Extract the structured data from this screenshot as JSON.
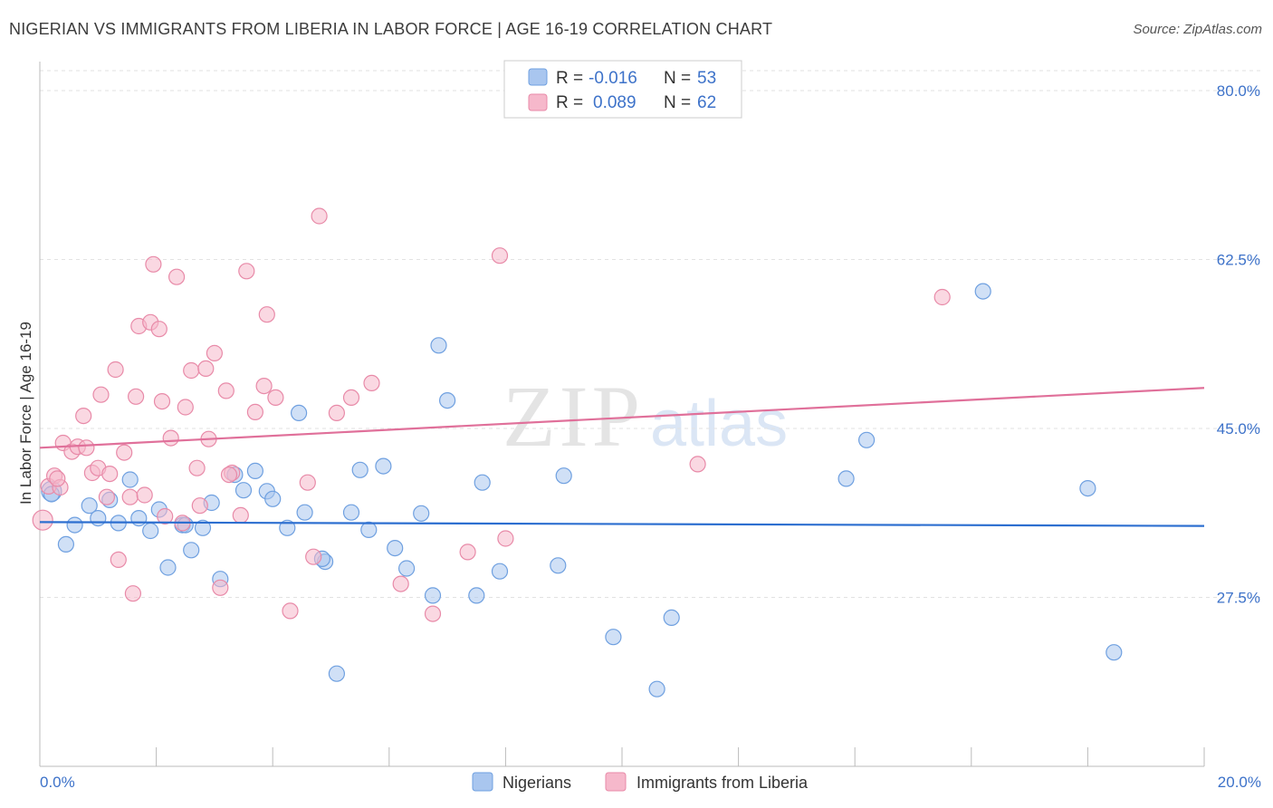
{
  "header": {
    "title": "NIGERIAN VS IMMIGRANTS FROM LIBERIA IN LABOR FORCE | AGE 16-19 CORRELATION CHART",
    "source": "Source: ZipAtlas.com"
  },
  "watermark": {
    "zip": "ZIP",
    "atlas": "atlas"
  },
  "legend": {
    "r_label": "R =",
    "n_label": "N =",
    "rows": [
      {
        "r": "-0.016",
        "n": "53",
        "color": "#a9c6ef"
      },
      {
        "r": "0.089",
        "n": "62",
        "color": "#f6b8cb"
      }
    ]
  },
  "bottom_legend": [
    {
      "label": "Nigerians",
      "color": "#a9c6ef"
    },
    {
      "label": "Immigrants from Liberia",
      "color": "#f6b8cb"
    }
  ],
  "chart_data": {
    "type": "scatter",
    "title": "NIGERIAN VS IMMIGRANTS FROM LIBERIA IN LABOR FORCE | AGE 16-19 CORRELATION CHART",
    "xlabel": "",
    "ylabel": "In Labor Force | Age 16-19",
    "xlim": [
      0,
      20
    ],
    "ylim": [
      10,
      83
    ],
    "x_ticks": [
      "0.0%",
      "20.0%"
    ],
    "y_ticks": [
      {
        "value": 80,
        "label": "80.0%"
      },
      {
        "value": 62.5,
        "label": "62.5%"
      },
      {
        "value": 45,
        "label": "45.0%"
      },
      {
        "value": 27.5,
        "label": "27.5%"
      }
    ],
    "grid": true,
    "legend_position": "top-center",
    "series": [
      {
        "name": "Nigerians",
        "color": "#6fa0e0",
        "fill": "#a9c6ef",
        "trend": {
          "x": [
            0,
            20
          ],
          "y": [
            35.3,
            34.9
          ]
        },
        "points": [
          [
            0.2,
            38.5
          ],
          [
            0.45,
            33.0
          ],
          [
            0.6,
            35.0
          ],
          [
            0.85,
            37.0
          ],
          [
            1.0,
            35.7
          ],
          [
            1.2,
            37.6
          ],
          [
            1.35,
            35.2
          ],
          [
            1.55,
            39.7
          ],
          [
            1.7,
            35.7
          ],
          [
            1.9,
            34.4
          ],
          [
            2.05,
            36.6
          ],
          [
            2.2,
            30.6
          ],
          [
            2.45,
            35.0
          ],
          [
            2.6,
            32.4
          ],
          [
            2.8,
            34.7
          ],
          [
            2.95,
            37.3
          ],
          [
            3.1,
            29.4
          ],
          [
            3.35,
            40.2
          ],
          [
            3.5,
            38.6
          ],
          [
            3.7,
            40.6
          ],
          [
            3.9,
            38.5
          ],
          [
            4.0,
            37.7
          ],
          [
            4.25,
            34.7
          ],
          [
            4.45,
            46.6
          ],
          [
            4.55,
            36.3
          ],
          [
            4.9,
            31.2
          ],
          [
            5.1,
            19.6
          ],
          [
            5.35,
            36.3
          ],
          [
            5.5,
            40.7
          ],
          [
            5.65,
            34.5
          ],
          [
            5.9,
            41.1
          ],
          [
            6.1,
            32.6
          ],
          [
            6.3,
            30.5
          ],
          [
            6.55,
            36.2
          ],
          [
            6.75,
            27.7
          ],
          [
            6.85,
            53.6
          ],
          [
            7.0,
            47.9
          ],
          [
            7.5,
            27.7
          ],
          [
            7.6,
            39.4
          ],
          [
            7.9,
            30.2
          ],
          [
            8.9,
            30.8
          ],
          [
            9.0,
            40.1
          ],
          [
            9.85,
            23.4
          ],
          [
            10.6,
            18.0
          ],
          [
            10.85,
            25.4
          ],
          [
            13.85,
            39.8
          ],
          [
            14.2,
            43.8
          ],
          [
            16.2,
            59.2
          ],
          [
            18.0,
            38.8
          ],
          [
            18.45,
            21.8
          ],
          [
            0.2,
            38.2
          ],
          [
            4.85,
            31.5
          ],
          [
            2.5,
            35.0
          ]
        ]
      },
      {
        "name": "Immigrants from Liberia",
        "color": "#e88aa8",
        "fill": "#f6b8cb",
        "trend": {
          "x": [
            0,
            20
          ],
          "y": [
            43.0,
            49.2
          ]
        },
        "points": [
          [
            0.05,
            35.5
          ],
          [
            0.15,
            39.0
          ],
          [
            0.25,
            40.1
          ],
          [
            0.35,
            38.9
          ],
          [
            0.4,
            43.5
          ],
          [
            0.55,
            42.6
          ],
          [
            0.65,
            43.1
          ],
          [
            0.75,
            46.3
          ],
          [
            0.8,
            43.0
          ],
          [
            0.9,
            40.4
          ],
          [
            1.0,
            40.9
          ],
          [
            1.05,
            48.5
          ],
          [
            1.15,
            37.9
          ],
          [
            1.2,
            40.3
          ],
          [
            1.3,
            51.1
          ],
          [
            1.35,
            31.4
          ],
          [
            1.45,
            42.5
          ],
          [
            1.55,
            37.9
          ],
          [
            1.6,
            27.9
          ],
          [
            1.65,
            48.3
          ],
          [
            1.7,
            55.6
          ],
          [
            1.8,
            38.1
          ],
          [
            1.9,
            56.0
          ],
          [
            1.95,
            62.0
          ],
          [
            2.05,
            55.3
          ],
          [
            2.1,
            47.8
          ],
          [
            2.15,
            35.9
          ],
          [
            2.25,
            44.0
          ],
          [
            2.35,
            60.7
          ],
          [
            2.45,
            35.2
          ],
          [
            2.5,
            47.2
          ],
          [
            2.6,
            51.0
          ],
          [
            2.7,
            40.9
          ],
          [
            2.75,
            37.0
          ],
          [
            2.85,
            51.2
          ],
          [
            2.9,
            43.9
          ],
          [
            3.0,
            52.8
          ],
          [
            3.1,
            28.5
          ],
          [
            3.2,
            48.9
          ],
          [
            3.3,
            40.4
          ],
          [
            3.45,
            36.0
          ],
          [
            3.55,
            61.3
          ],
          [
            3.7,
            46.7
          ],
          [
            3.85,
            49.4
          ],
          [
            3.9,
            56.8
          ],
          [
            4.05,
            48.2
          ],
          [
            4.3,
            26.1
          ],
          [
            4.6,
            39.4
          ],
          [
            4.7,
            31.7
          ],
          [
            4.8,
            67.0
          ],
          [
            5.1,
            46.6
          ],
          [
            5.35,
            48.2
          ],
          [
            5.7,
            49.7
          ],
          [
            6.2,
            28.9
          ],
          [
            6.75,
            25.8
          ],
          [
            7.35,
            32.2
          ],
          [
            7.9,
            62.9
          ],
          [
            8.0,
            33.6
          ],
          [
            11.3,
            41.3
          ],
          [
            15.5,
            58.6
          ],
          [
            0.3,
            39.8
          ],
          [
            3.25,
            40.2
          ]
        ]
      }
    ]
  }
}
